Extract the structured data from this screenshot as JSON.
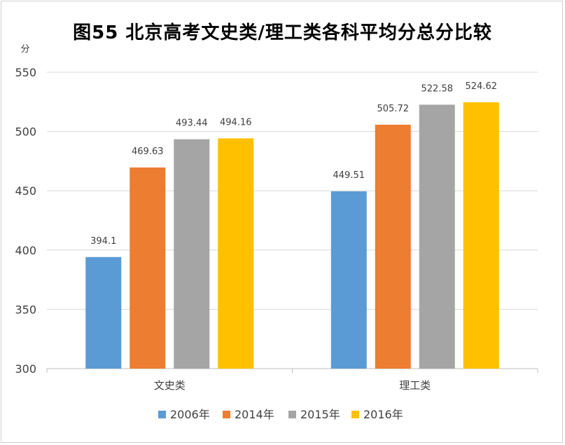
{
  "chart_data": {
    "type": "bar",
    "title": "图55 北京高考文史类/理工类各科平均分总分比较",
    "ylabel": "分",
    "xlabel": "",
    "categories": [
      "文史类",
      "理工类"
    ],
    "series": [
      {
        "name": "2006年",
        "color": "#5b9bd5",
        "values": [
          394.1,
          449.51
        ]
      },
      {
        "name": "2014年",
        "color": "#ed7d31",
        "values": [
          469.63,
          505.72
        ]
      },
      {
        "name": "2015年",
        "color": "#a5a5a5",
        "values": [
          493.44,
          522.58
        ]
      },
      {
        "name": "2016年",
        "color": "#ffc000",
        "values": [
          494.16,
          524.62
        ]
      }
    ],
    "data_labels": [
      [
        "394.1",
        "449.51"
      ],
      [
        "469.63",
        "505.72"
      ],
      [
        "493.44",
        "522.58"
      ],
      [
        "494.16",
        "524.62"
      ]
    ],
    "ylim": [
      300,
      550
    ],
    "yticks": [
      "300",
      "350",
      "400",
      "450",
      "500",
      "550"
    ],
    "ytick_values": [
      300,
      350,
      400,
      450,
      500,
      550
    ],
    "grid": true,
    "legend_position": "bottom"
  }
}
